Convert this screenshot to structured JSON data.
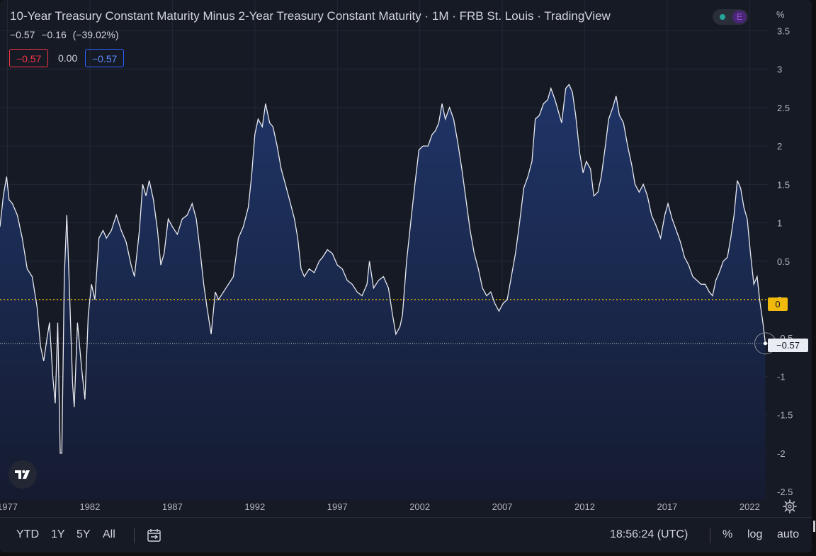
{
  "legend": {
    "title": "10-Year Treasury Constant Maturity Minus 2-Year Treasury Constant Maturity · 1M · FRB St. Louis · TradingView",
    "last": "−0.57",
    "change": "−0.16",
    "change_pct": "(−39.02%)",
    "box_red": "−0.57",
    "box_neutral": "0.00",
    "box_blue": "−0.57",
    "earnings_badge": "E"
  },
  "price_scale": {
    "unit": "%",
    "zero_label": "0",
    "last_label": "−0.57"
  },
  "bottom_bar": {
    "ranges": [
      "YTD",
      "1Y",
      "5Y",
      "All"
    ],
    "clock": "18:56:24 (UTC)",
    "pct": "%",
    "log": "log",
    "auto": "auto"
  },
  "icons": {
    "logo": "tradingview-logo-icon",
    "settings": "gear-icon",
    "date_range": "calendar-range-icon"
  },
  "colors": {
    "background": "#161a25",
    "line": "#e6e8ee",
    "area_top": "#1f3568",
    "area_bottom": "#151b30",
    "zero_line": "#f0b90b",
    "last_line": "#c8cad0",
    "down": "#f23645",
    "up": "#2962ff"
  },
  "chart_data": {
    "type": "area",
    "title": "10-Year Treasury Constant Maturity Minus 2-Year Treasury Constant Maturity",
    "interval": "1M",
    "source": "FRB St. Louis",
    "ylabel": "%",
    "ylim": [
      -2.6,
      3.9
    ],
    "xlim": [
      1976.55,
      2023.1
    ],
    "y_ticks": [
      "3.5",
      "3",
      "2.5",
      "2",
      "1.5",
      "1",
      "0.5",
      "0",
      "-0.5",
      "-1",
      "-1.5",
      "-2",
      "-2.5"
    ],
    "y_tick_values": [
      3.5,
      3,
      2.5,
      2,
      1.5,
      1,
      0.5,
      0,
      -0.5,
      -1,
      -1.5,
      -2,
      -2.5
    ],
    "x_ticks": [
      "1977",
      "1982",
      "1987",
      "1992",
      "1997",
      "2002",
      "2007",
      "2012",
      "2017",
      "2022"
    ],
    "x_tick_values": [
      1977,
      1982,
      1987,
      1992,
      1997,
      2002,
      2007,
      2012,
      2017,
      2022
    ],
    "reference_lines": [
      0
    ],
    "grid": true,
    "points": [
      [
        1976.55,
        0.95
      ],
      [
        1976.75,
        1.35
      ],
      [
        1976.95,
        1.6
      ],
      [
        1977.1,
        1.3
      ],
      [
        1977.3,
        1.25
      ],
      [
        1977.6,
        1.1
      ],
      [
        1977.9,
        0.8
      ],
      [
        1978.2,
        0.4
      ],
      [
        1978.5,
        0.3
      ],
      [
        1978.8,
        -0.1
      ],
      [
        1979.0,
        -0.6
      ],
      [
        1979.2,
        -0.8
      ],
      [
        1979.4,
        -0.5
      ],
      [
        1979.55,
        -0.3
      ],
      [
        1979.75,
        -1.0
      ],
      [
        1979.9,
        -1.35
      ],
      [
        1980.05,
        -0.3
      ],
      [
        1980.2,
        -2.0
      ],
      [
        1980.3,
        -2.0
      ],
      [
        1980.45,
        0.3
      ],
      [
        1980.6,
        1.1
      ],
      [
        1980.75,
        0.2
      ],
      [
        1980.95,
        -1.1
      ],
      [
        1981.05,
        -1.4
      ],
      [
        1981.25,
        -0.3
      ],
      [
        1981.5,
        -0.9
      ],
      [
        1981.7,
        -1.3
      ],
      [
        1981.9,
        -0.2
      ],
      [
        1982.1,
        0.2
      ],
      [
        1982.3,
        0.0
      ],
      [
        1982.55,
        0.8
      ],
      [
        1982.8,
        0.9
      ],
      [
        1983.0,
        0.8
      ],
      [
        1983.3,
        0.9
      ],
      [
        1983.6,
        1.1
      ],
      [
        1983.9,
        0.9
      ],
      [
        1984.2,
        0.75
      ],
      [
        1984.5,
        0.45
      ],
      [
        1984.7,
        0.3
      ],
      [
        1985.0,
        0.9
      ],
      [
        1985.2,
        1.5
      ],
      [
        1985.4,
        1.35
      ],
      [
        1985.6,
        1.55
      ],
      [
        1985.85,
        1.3
      ],
      [
        1986.1,
        0.9
      ],
      [
        1986.3,
        0.45
      ],
      [
        1986.5,
        0.6
      ],
      [
        1986.75,
        1.05
      ],
      [
        1987.0,
        0.95
      ],
      [
        1987.3,
        0.85
      ],
      [
        1987.6,
        1.05
      ],
      [
        1987.9,
        1.1
      ],
      [
        1988.2,
        1.25
      ],
      [
        1988.45,
        1.05
      ],
      [
        1988.7,
        0.6
      ],
      [
        1988.9,
        0.2
      ],
      [
        1989.1,
        -0.1
      ],
      [
        1989.35,
        -0.45
      ],
      [
        1989.6,
        0.1
      ],
      [
        1989.8,
        0.0
      ],
      [
        1990.1,
        0.1
      ],
      [
        1990.4,
        0.2
      ],
      [
        1990.7,
        0.3
      ],
      [
        1991.0,
        0.8
      ],
      [
        1991.3,
        0.95
      ],
      [
        1991.6,
        1.2
      ],
      [
        1991.8,
        1.6
      ],
      [
        1992.0,
        2.15
      ],
      [
        1992.2,
        2.35
      ],
      [
        1992.45,
        2.25
      ],
      [
        1992.65,
        2.55
      ],
      [
        1992.9,
        2.3
      ],
      [
        1993.1,
        2.25
      ],
      [
        1993.35,
        2.0
      ],
      [
        1993.6,
        1.7
      ],
      [
        1993.85,
        1.5
      ],
      [
        1994.1,
        1.3
      ],
      [
        1994.4,
        1.05
      ],
      [
        1994.6,
        0.8
      ],
      [
        1994.8,
        0.4
      ],
      [
        1995.0,
        0.3
      ],
      [
        1995.3,
        0.4
      ],
      [
        1995.6,
        0.35
      ],
      [
        1995.9,
        0.5
      ],
      [
        1996.1,
        0.55
      ],
      [
        1996.4,
        0.65
      ],
      [
        1996.7,
        0.6
      ],
      [
        1997.0,
        0.45
      ],
      [
        1997.3,
        0.4
      ],
      [
        1997.6,
        0.25
      ],
      [
        1997.9,
        0.2
      ],
      [
        1998.2,
        0.1
      ],
      [
        1998.5,
        0.05
      ],
      [
        1998.8,
        0.2
      ],
      [
        1998.95,
        0.5
      ],
      [
        1999.2,
        0.15
      ],
      [
        1999.5,
        0.25
      ],
      [
        1999.8,
        0.3
      ],
      [
        2000.1,
        0.15
      ],
      [
        2000.35,
        -0.2
      ],
      [
        2000.55,
        -0.45
      ],
      [
        2000.8,
        -0.35
      ],
      [
        2000.95,
        -0.2
      ],
      [
        2001.2,
        0.5
      ],
      [
        2001.45,
        1.0
      ],
      [
        2001.7,
        1.5
      ],
      [
        2001.95,
        1.95
      ],
      [
        2002.2,
        2.0
      ],
      [
        2002.5,
        2.0
      ],
      [
        2002.75,
        2.15
      ],
      [
        2002.95,
        2.2
      ],
      [
        2003.15,
        2.3
      ],
      [
        2003.35,
        2.55
      ],
      [
        2003.55,
        2.35
      ],
      [
        2003.8,
        2.5
      ],
      [
        2004.05,
        2.35
      ],
      [
        2004.3,
        2.05
      ],
      [
        2004.55,
        1.7
      ],
      [
        2004.8,
        1.3
      ],
      [
        2005.05,
        0.9
      ],
      [
        2005.3,
        0.6
      ],
      [
        2005.55,
        0.4
      ],
      [
        2005.8,
        0.15
      ],
      [
        2006.05,
        0.05
      ],
      [
        2006.3,
        0.1
      ],
      [
        2006.55,
        -0.05
      ],
      [
        2006.8,
        -0.15
      ],
      [
        2007.05,
        -0.05
      ],
      [
        2007.3,
        0.0
      ],
      [
        2007.55,
        0.3
      ],
      [
        2007.8,
        0.6
      ],
      [
        2008.05,
        1.0
      ],
      [
        2008.3,
        1.45
      ],
      [
        2008.55,
        1.6
      ],
      [
        2008.8,
        1.8
      ],
      [
        2009.0,
        2.35
      ],
      [
        2009.25,
        2.4
      ],
      [
        2009.5,
        2.55
      ],
      [
        2009.75,
        2.6
      ],
      [
        2009.95,
        2.75
      ],
      [
        2010.2,
        2.6
      ],
      [
        2010.4,
        2.45
      ],
      [
        2010.6,
        2.3
      ],
      [
        2010.85,
        2.75
      ],
      [
        2011.05,
        2.8
      ],
      [
        2011.25,
        2.7
      ],
      [
        2011.45,
        2.4
      ],
      [
        2011.7,
        1.9
      ],
      [
        2011.9,
        1.65
      ],
      [
        2012.1,
        1.8
      ],
      [
        2012.35,
        1.7
      ],
      [
        2012.55,
        1.35
      ],
      [
        2012.8,
        1.4
      ],
      [
        2013.0,
        1.6
      ],
      [
        2013.25,
        2.0
      ],
      [
        2013.45,
        2.35
      ],
      [
        2013.7,
        2.5
      ],
      [
        2013.9,
        2.65
      ],
      [
        2014.1,
        2.4
      ],
      [
        2014.35,
        2.3
      ],
      [
        2014.6,
        2.0
      ],
      [
        2014.85,
        1.75
      ],
      [
        2015.05,
        1.5
      ],
      [
        2015.3,
        1.4
      ],
      [
        2015.55,
        1.5
      ],
      [
        2015.8,
        1.35
      ],
      [
        2016.05,
        1.1
      ],
      [
        2016.35,
        0.95
      ],
      [
        2016.6,
        0.8
      ],
      [
        2016.85,
        1.1
      ],
      [
        2017.05,
        1.25
      ],
      [
        2017.3,
        1.05
      ],
      [
        2017.55,
        0.9
      ],
      [
        2017.8,
        0.75
      ],
      [
        2018.05,
        0.55
      ],
      [
        2018.3,
        0.45
      ],
      [
        2018.55,
        0.3
      ],
      [
        2018.8,
        0.25
      ],
      [
        2019.05,
        0.2
      ],
      [
        2019.3,
        0.2
      ],
      [
        2019.55,
        0.1
      ],
      [
        2019.75,
        0.05
      ],
      [
        2019.95,
        0.25
      ],
      [
        2020.15,
        0.35
      ],
      [
        2020.4,
        0.5
      ],
      [
        2020.65,
        0.55
      ],
      [
        2020.85,
        0.8
      ],
      [
        2021.05,
        1.1
      ],
      [
        2021.25,
        1.55
      ],
      [
        2021.45,
        1.45
      ],
      [
        2021.65,
        1.2
      ],
      [
        2021.85,
        1.05
      ],
      [
        2022.05,
        0.6
      ],
      [
        2022.25,
        0.2
      ],
      [
        2022.45,
        0.3
      ],
      [
        2022.6,
        0.0
      ],
      [
        2022.8,
        -0.3
      ],
      [
        2022.95,
        -0.57
      ]
    ]
  }
}
